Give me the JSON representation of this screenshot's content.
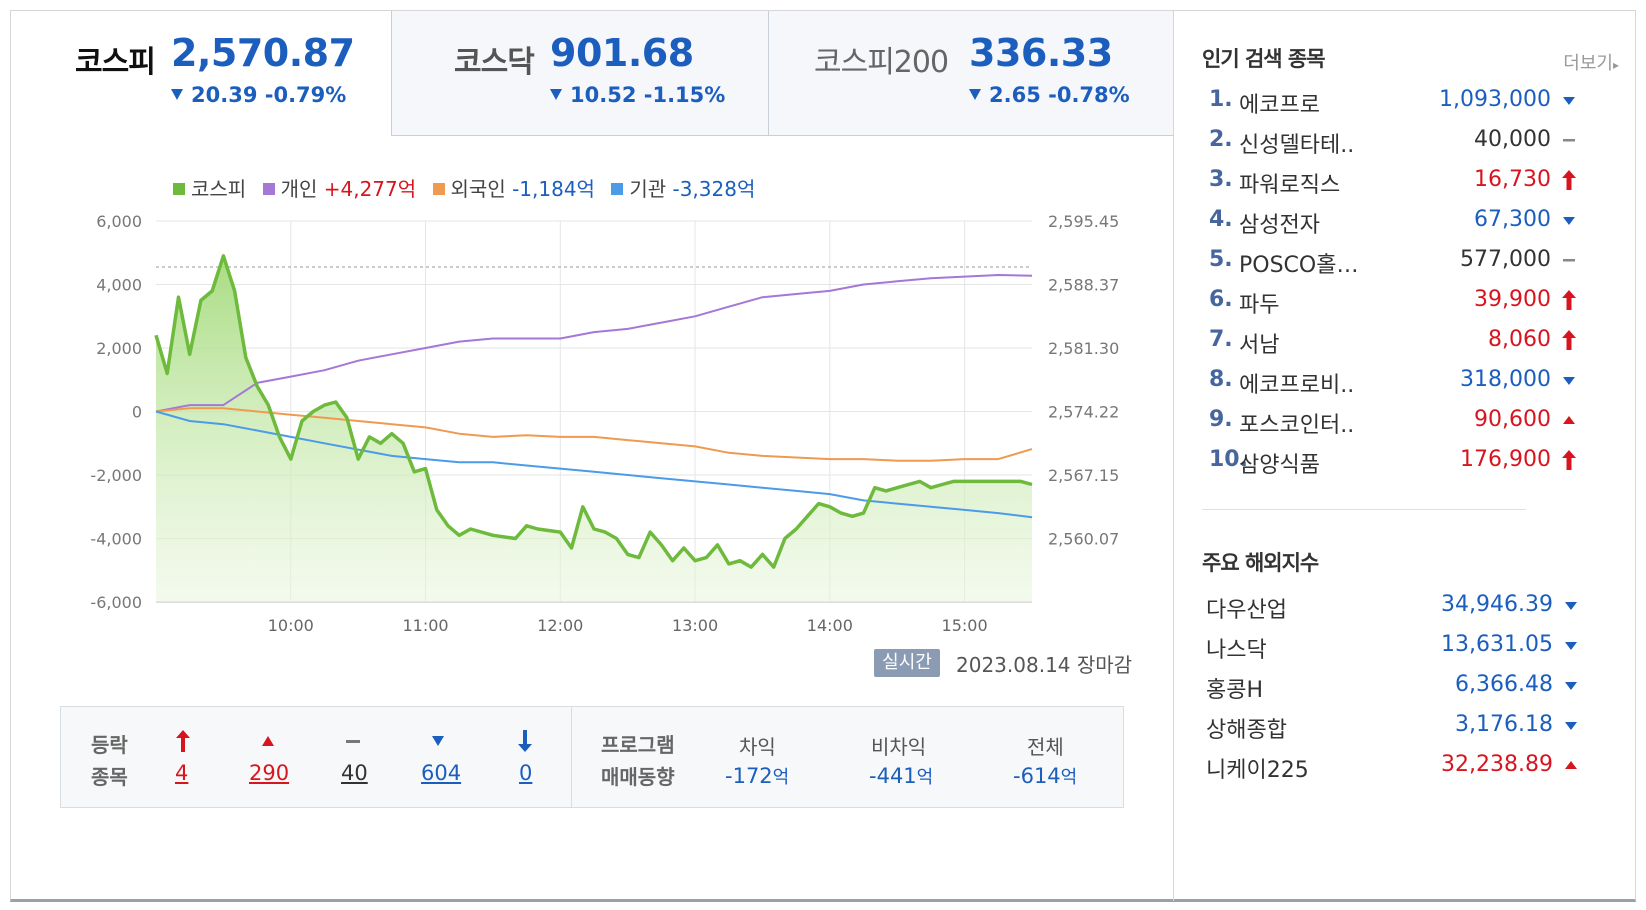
{
  "tabs": [
    {
      "name": "코스피",
      "value": "2,570.87",
      "change": "20.39 -0.79%"
    },
    {
      "name": "코스닥",
      "value": "901.68",
      "change": "10.52 -1.15%"
    },
    {
      "name": "코스피200",
      "value": "336.33",
      "change": "2.65 -0.78%"
    }
  ],
  "legend": [
    {
      "label": "코스피",
      "value": "",
      "color": "#6dba3c"
    },
    {
      "label": "개인",
      "value": "+4,277억",
      "value_color": "#d7151f",
      "color": "#a577d6"
    },
    {
      "label": "외국인",
      "value": "-1,184억",
      "value_color": "#1b5ebe",
      "color": "#f09a4f"
    },
    {
      "label": "기관",
      "value": "-3,328억",
      "value_color": "#1b5ebe",
      "color": "#4b9be8"
    }
  ],
  "chart_data": {
    "type": "line",
    "x_ticks": [
      "10:00",
      "11:00",
      "12:00",
      "13:00",
      "14:00",
      "15:00"
    ],
    "x_range": [
      "09:00",
      "15:30"
    ],
    "ylim_left": [
      -6000,
      6000
    ],
    "ylim_right": [
      2560.07,
      2595.45
    ],
    "left_ticks": [
      "6,000",
      "4,000",
      "2,000",
      "0",
      "-2,000",
      "-4,000",
      "-6,000"
    ],
    "right_ticks": [
      "2,595.45",
      "2,588.37",
      "2,581.30",
      "2,574.22",
      "2,567.15",
      "2,560.07"
    ],
    "reference_line": 4550,
    "series": [
      {
        "name": "코스피",
        "color": "#6dba3c",
        "area": true,
        "x": [
          "09:00",
          "09:05",
          "09:10",
          "09:15",
          "09:20",
          "09:25",
          "09:30",
          "09:35",
          "09:40",
          "09:45",
          "09:50",
          "09:55",
          "10:00",
          "10:05",
          "10:10",
          "10:15",
          "10:20",
          "10:25",
          "10:30",
          "10:35",
          "10:40",
          "10:45",
          "10:50",
          "10:55",
          "11:00",
          "11:05",
          "11:10",
          "11:15",
          "11:20",
          "11:30",
          "11:40",
          "11:45",
          "11:50",
          "12:00",
          "12:05",
          "12:10",
          "12:15",
          "12:20",
          "12:25",
          "12:30",
          "12:35",
          "12:40",
          "12:45",
          "12:50",
          "12:55",
          "13:00",
          "13:05",
          "13:10",
          "13:15",
          "13:20",
          "13:25",
          "13:30",
          "13:35",
          "13:40",
          "13:45",
          "13:50",
          "13:55",
          "14:00",
          "14:05",
          "14:10",
          "14:15",
          "14:20",
          "14:25",
          "14:30",
          "14:35",
          "14:40",
          "14:45",
          "14:50",
          "14:55",
          "15:00",
          "15:05",
          "15:10",
          "15:15",
          "15:20",
          "15:25",
          "15:30"
        ],
        "values": [
          2400,
          1200,
          3600,
          1800,
          3500,
          3800,
          4900,
          3800,
          1700,
          800,
          200,
          -800,
          -1500,
          -300,
          0,
          200,
          300,
          -200,
          -1500,
          -800,
          -1000,
          -700,
          -1000,
          -1900,
          -1800,
          -3100,
          -3600,
          -3900,
          -3700,
          -3900,
          -4000,
          -3600,
          -3700,
          -3800,
          -4300,
          -3000,
          -3700,
          -3800,
          -4000,
          -4500,
          -4600,
          -3800,
          -4200,
          -4700,
          -4300,
          -4700,
          -4600,
          -4200,
          -4800,
          -4700,
          -4900,
          -4500,
          -4900,
          -4000,
          -3700,
          -3300,
          -2900,
          -3000,
          -3200,
          -3300,
          -3200,
          -2400,
          -2500,
          -2400,
          -2300,
          -2200,
          -2400,
          -2300,
          -2200,
          -2200,
          -2200,
          -2200,
          -2200,
          -2200,
          -2200,
          -2300
        ]
      },
      {
        "name": "개인",
        "color": "#a577d6",
        "x": [
          "09:00",
          "09:15",
          "09:30",
          "09:45",
          "10:00",
          "10:15",
          "10:30",
          "10:45",
          "11:00",
          "11:15",
          "11:30",
          "11:45",
          "12:00",
          "12:15",
          "12:30",
          "12:45",
          "13:00",
          "13:15",
          "13:30",
          "13:45",
          "14:00",
          "14:15",
          "14:30",
          "14:45",
          "15:00",
          "15:15",
          "15:30"
        ],
        "values": [
          0,
          200,
          200,
          900,
          1100,
          1300,
          1600,
          1800,
          2000,
          2200,
          2300,
          2300,
          2300,
          2500,
          2600,
          2800,
          3000,
          3300,
          3600,
          3700,
          3800,
          4000,
          4100,
          4200,
          4250,
          4300,
          4277
        ]
      },
      {
        "name": "외국인",
        "color": "#f09a4f",
        "x": [
          "09:00",
          "09:15",
          "09:30",
          "09:45",
          "10:00",
          "10:15",
          "10:30",
          "10:45",
          "11:00",
          "11:15",
          "11:30",
          "11:45",
          "12:00",
          "12:15",
          "12:30",
          "12:45",
          "13:00",
          "13:15",
          "13:30",
          "13:45",
          "14:00",
          "14:15",
          "14:30",
          "14:45",
          "15:00",
          "15:15",
          "15:30"
        ],
        "values": [
          0,
          100,
          100,
          0,
          -100,
          -200,
          -300,
          -400,
          -500,
          -700,
          -800,
          -750,
          -800,
          -800,
          -900,
          -1000,
          -1100,
          -1300,
          -1400,
          -1450,
          -1500,
          -1500,
          -1550,
          -1550,
          -1500,
          -1500,
          -1184
        ]
      },
      {
        "name": "기관",
        "color": "#4b9be8",
        "x": [
          "09:00",
          "09:15",
          "09:30",
          "09:45",
          "10:00",
          "10:15",
          "10:30",
          "10:45",
          "11:00",
          "11:15",
          "11:30",
          "11:45",
          "12:00",
          "12:15",
          "12:30",
          "12:45",
          "13:00",
          "13:15",
          "13:30",
          "13:45",
          "14:00",
          "14:15",
          "14:30",
          "14:45",
          "15:00",
          "15:15",
          "15:30"
        ],
        "values": [
          0,
          -300,
          -400,
          -600,
          -800,
          -1000,
          -1200,
          -1400,
          -1500,
          -1600,
          -1600,
          -1700,
          -1800,
          -1900,
          -2000,
          -2100,
          -2200,
          -2300,
          -2400,
          -2500,
          -2600,
          -2800,
          -2900,
          -3000,
          -3100,
          -3200,
          -3328
        ]
      }
    ]
  },
  "chart_footer": {
    "realtime_label": "실시간",
    "date": "2023.08.14 장마감"
  },
  "stats": {
    "label_line1": "등락",
    "label_line2": "종목",
    "items": [
      {
        "icon": "upper-limit-icon",
        "count": "4",
        "color": "#d7151f"
      },
      {
        "icon": "rise-icon",
        "count": "290",
        "color": "#d7151f"
      },
      {
        "icon": "unchanged-icon",
        "count": "40",
        "color": "#333333"
      },
      {
        "icon": "fall-icon",
        "count": "604",
        "color": "#1b5ebe"
      },
      {
        "icon": "lower-limit-icon",
        "count": "0",
        "color": "#1b5ebe"
      }
    ],
    "program_line1": "프로그램",
    "program_line2": "매매동향",
    "program": [
      {
        "head": "차익",
        "value": "-172",
        "unit": "억"
      },
      {
        "head": "비차익",
        "value": "-441",
        "unit": "억"
      },
      {
        "head": "전체",
        "value": "-614",
        "unit": "억"
      }
    ]
  },
  "hot": {
    "title": "인기 검색 종목",
    "more": "더보기",
    "items": [
      {
        "rank": "1.",
        "name": "에코프로",
        "price": "1,093,000",
        "dir": "down"
      },
      {
        "rank": "2.",
        "name": "신성델타테..",
        "price": "40,000",
        "dir": "flat"
      },
      {
        "rank": "3.",
        "name": "파워로직스",
        "price": "16,730",
        "dir": "limitup"
      },
      {
        "rank": "4.",
        "name": "삼성전자",
        "price": "67,300",
        "dir": "down"
      },
      {
        "rank": "5.",
        "name": "POSCO홀…",
        "price": "577,000",
        "dir": "flat"
      },
      {
        "rank": "6.",
        "name": "파두",
        "price": "39,900",
        "dir": "limitup"
      },
      {
        "rank": "7.",
        "name": "서남",
        "price": "8,060",
        "dir": "limitup"
      },
      {
        "rank": "8.",
        "name": "에코프로비..",
        "price": "318,000",
        "dir": "down"
      },
      {
        "rank": "9.",
        "name": "포스코인터..",
        "price": "90,600",
        "dir": "up"
      },
      {
        "rank": "10.",
        "name": "삼양식품",
        "price": "176,900",
        "dir": "limitup"
      }
    ]
  },
  "world": {
    "title": "주요 해외지수",
    "items": [
      {
        "name": "다우산업",
        "value": "34,946.39",
        "dir": "down"
      },
      {
        "name": "나스닥",
        "value": "13,631.05",
        "dir": "down"
      },
      {
        "name": "홍콩H",
        "value": "6,366.48",
        "dir": "down"
      },
      {
        "name": "상해종합",
        "value": "3,176.18",
        "dir": "down"
      },
      {
        "name": "니케이225",
        "value": "32,238.89",
        "dir": "up"
      }
    ]
  }
}
